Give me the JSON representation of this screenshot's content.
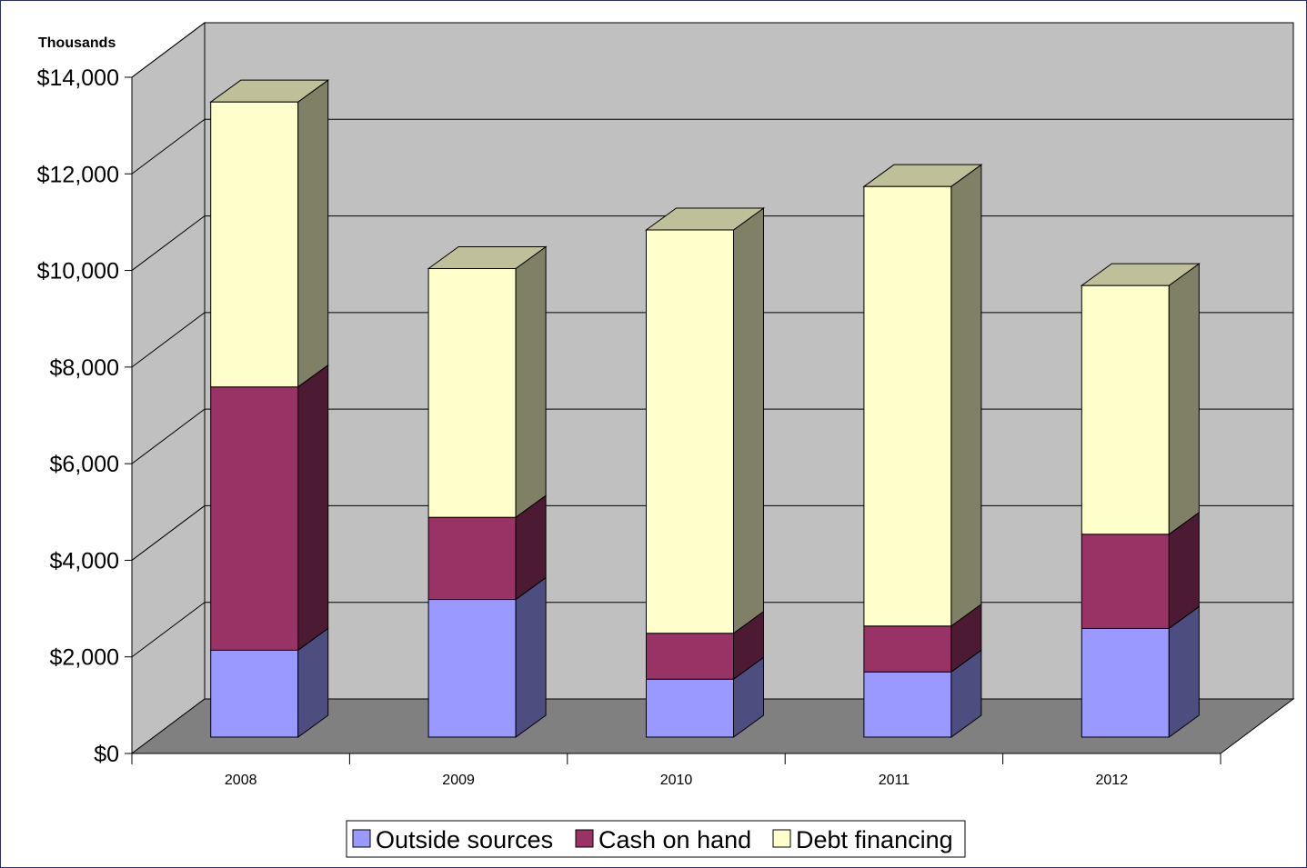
{
  "chart_data": {
    "type": "bar",
    "stacked": true,
    "three_d": true,
    "unit_label": "Thousands",
    "categories": [
      "2008",
      "2009",
      "2010",
      "2011",
      "2012"
    ],
    "series": [
      {
        "name": "Outside sources",
        "values": [
          1800,
          2850,
          1200,
          1350,
          2250
        ],
        "color": "#9999ff",
        "side_color": "#4d4d80",
        "top_color": "#7373bf"
      },
      {
        "name": "Cash on hand",
        "values": [
          5450,
          1700,
          950,
          950,
          1950
        ],
        "color": "#993366",
        "side_color": "#4d1a33",
        "top_color": "#73264d"
      },
      {
        "name": "Debt financing",
        "values": [
          5900,
          5150,
          8350,
          9100,
          5150
        ],
        "color": "#ffffcc",
        "side_color": "#808066",
        "top_color": "#bfbf99"
      }
    ],
    "ylim": [
      0,
      14000
    ],
    "yticks": [
      0,
      2000,
      4000,
      6000,
      8000,
      10000,
      12000,
      14000
    ],
    "ytick_labels": [
      "$0",
      "$2,000",
      "$4,000",
      "$6,000",
      "$8,000",
      "$10,000",
      "$12,000",
      "$14,000"
    ],
    "grid": true,
    "legend_position": "bottom",
    "colors": {
      "wall": "#c0c0c0",
      "side_wall": "#c0c0c0",
      "floor": "#808080",
      "gridline": "#000000",
      "frame_border": "#2b2f6b"
    }
  }
}
